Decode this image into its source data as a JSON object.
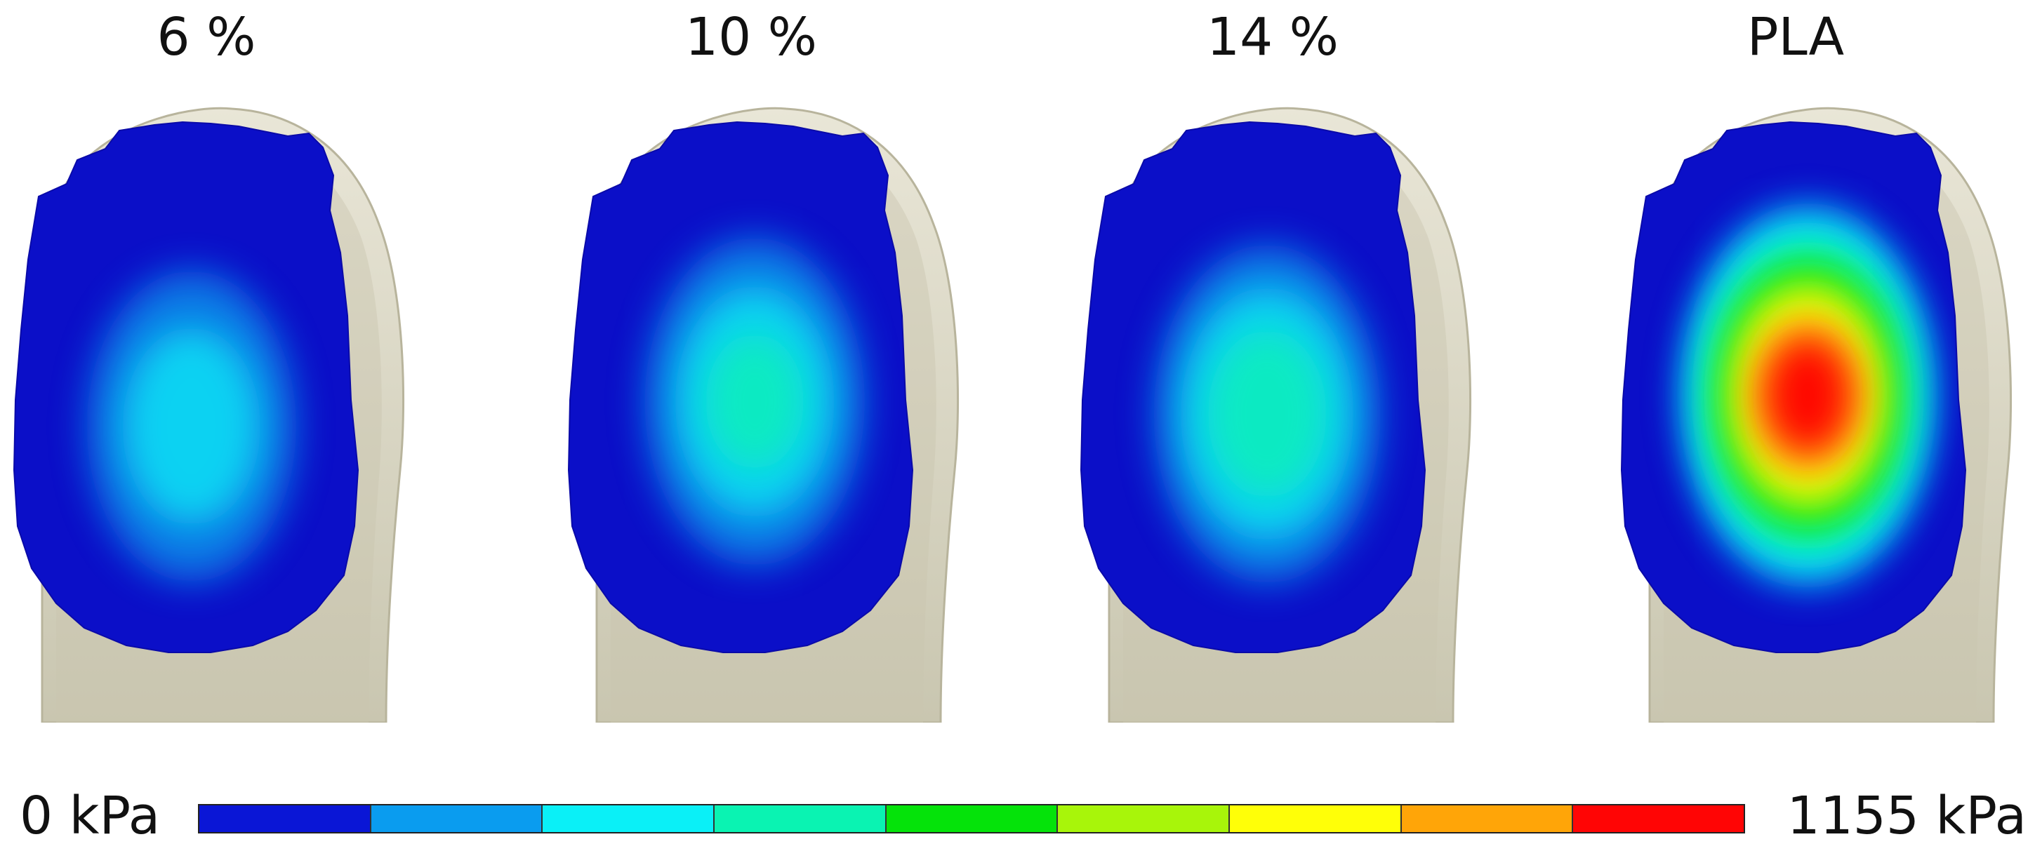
{
  "panels": [
    {
      "title": "6 %",
      "peak": 0.34,
      "hot_x": 0.44,
      "hot_y": 0.52
    },
    {
      "title": "10 %",
      "peak": 0.4,
      "hot_x": 0.46,
      "hot_y": 0.48
    },
    {
      "title": "14 %",
      "peak": 0.45,
      "hot_x": 0.46,
      "hot_y": 0.5
    },
    {
      "title": "PLA",
      "peak": 1.0,
      "hot_x": 0.46,
      "hot_y": 0.47
    }
  ],
  "scale": {
    "min_label": "0 kPa",
    "max_label": "1155 kPa",
    "colors": [
      "#0a16d6",
      "#0a9cef",
      "#0af0f7",
      "#0af3b2",
      "#05e30a",
      "#a8f50a",
      "#ffff08",
      "#ffa508",
      "#ff0505"
    ]
  },
  "colors": {
    "contact_base": "#0b0fc8",
    "bone_shell": "#e9e6d7",
    "bone_shadow": "#c9c6b0"
  }
}
